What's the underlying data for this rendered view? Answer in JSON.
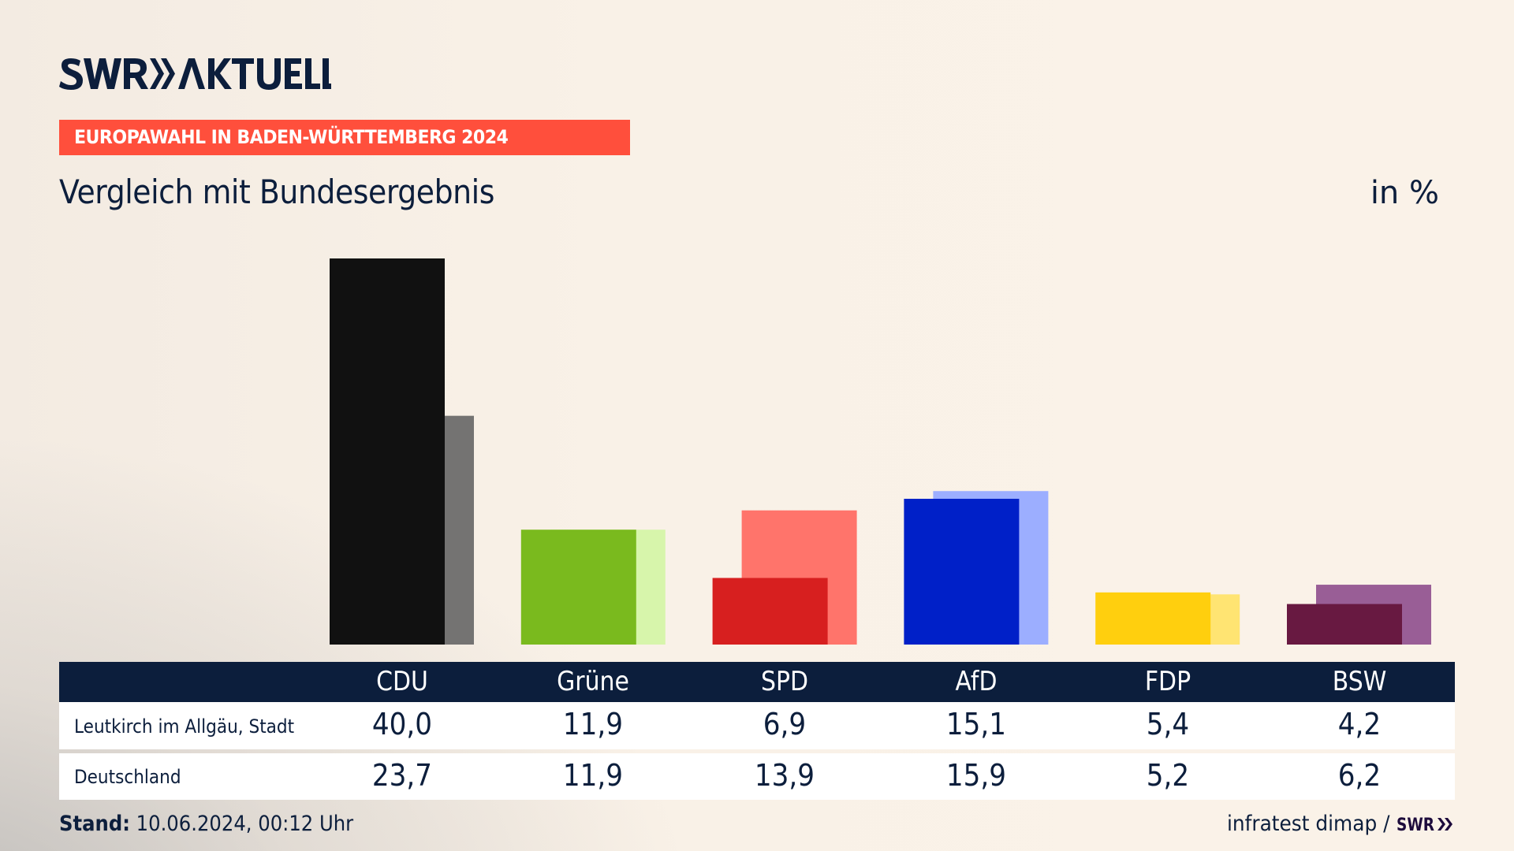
{
  "header": {
    "logo_text": "SWR AKTUELL",
    "kicker": "EUROPAWAHL IN BADEN-WÜRTTEMBERG 2024",
    "title": "Vergleich mit Bundesergebnis",
    "unit": "in %"
  },
  "colors": {
    "navy": "#0c1e3c",
    "kicker_bg": "#ff4f3c"
  },
  "chart_data": {
    "type": "bar",
    "title": "Vergleich mit Bundesergebnis",
    "ylabel": "in %",
    "ylim": [
      0,
      40
    ],
    "grid": false,
    "categories": [
      "CDU",
      "Grüne",
      "SPD",
      "AfD",
      "FDP",
      "BSW"
    ],
    "series": [
      {
        "name": "Leutkirch im Allgäu, Stadt",
        "values": [
          40.0,
          11.9,
          6.9,
          15.1,
          5.4,
          4.2
        ],
        "labels": [
          "40,0",
          "11,9",
          "6,9",
          "15,1",
          "5,4",
          "4,2"
        ],
        "colors": [
          "#111111",
          "#7aba1e",
          "#d71f1f",
          "#0020c8",
          "#ffcf0e",
          "#681941"
        ]
      },
      {
        "name": "Deutschland",
        "values": [
          23.7,
          11.9,
          13.9,
          15.9,
          5.2,
          6.2
        ],
        "labels": [
          "23,7",
          "11,9",
          "13,9",
          "15,9",
          "5,2",
          "6,2"
        ],
        "colors": [
          "#747372",
          "#d7f5ab",
          "#ff746b",
          "#9caeff",
          "#ffe472",
          "#995e96"
        ]
      }
    ]
  },
  "footer": {
    "stand_label": "Stand:",
    "stand_value": " 10.06.2024, 00:12 Uhr",
    "source": "infratest dimap /",
    "source_logo": "SWR"
  }
}
